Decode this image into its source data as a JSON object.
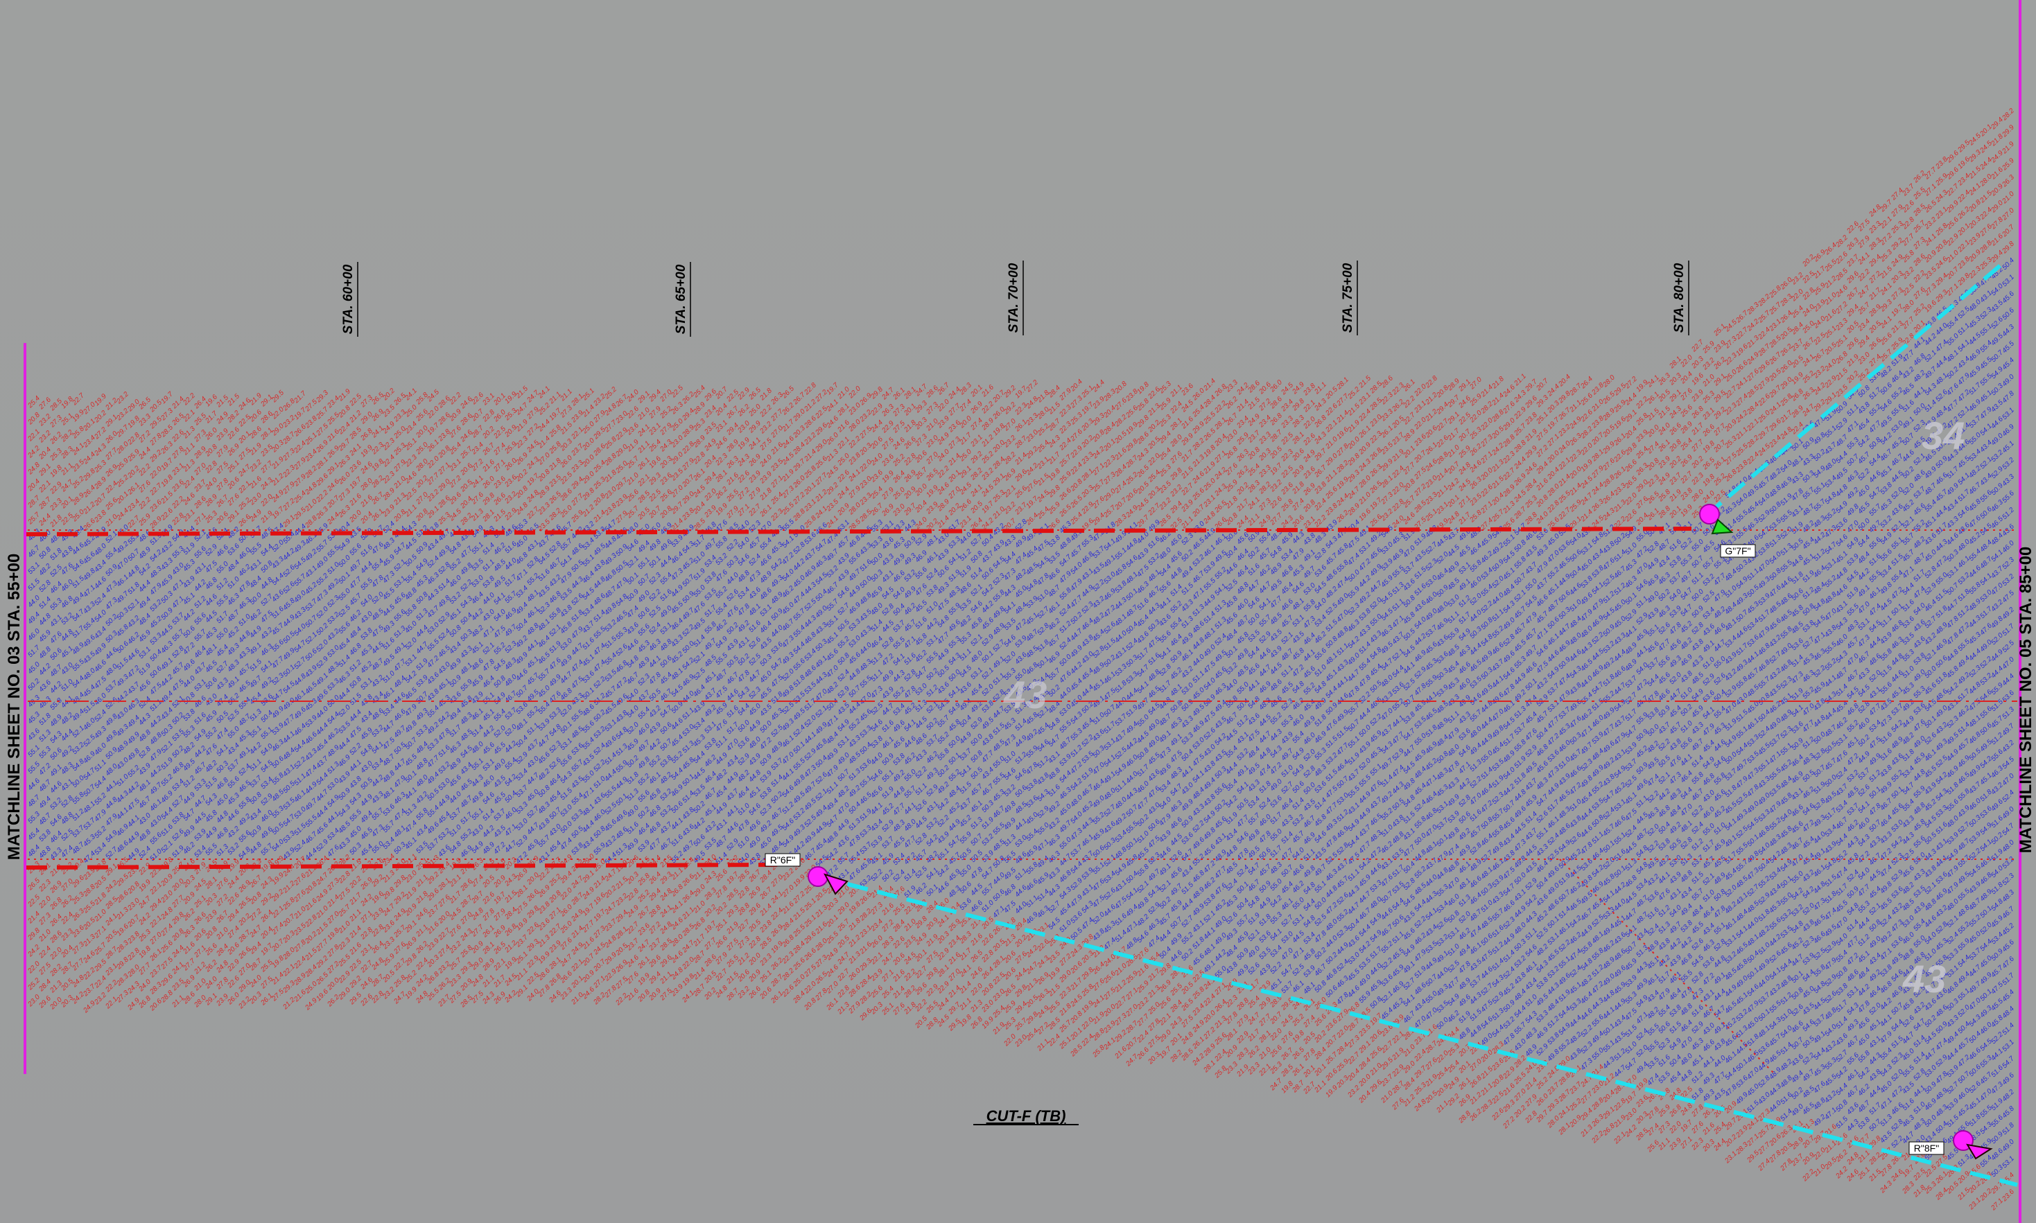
{
  "title": "",
  "colors": {
    "background": "#9e9fa0",
    "fill_values": "#d52a2a",
    "cut_values": "#2a2ad5",
    "dashed_boundary": "#e01010",
    "daylight_line": "#22e0ee",
    "matchline": "#e020e0",
    "control_point": "#ff22ff",
    "contour_label": "#c8c8d0"
  },
  "matchlines": {
    "left": "MATCHLINE SHEET NO. 03 STA. 55+00",
    "right": "MATCHLINE SHEET NO. 05 STA. 85+00"
  },
  "stations": [
    "STA. 60+00",
    "STA. 65+00",
    "STA. 70+00",
    "STA. 75+00",
    "STA. 80+00"
  ],
  "section_label": "CUT-F (TB)",
  "points": [
    {
      "label": "R\"6F\"",
      "icon": "target-circle-icon"
    },
    {
      "label": "G\"7F\"",
      "icon": "green-triangle-icon"
    },
    {
      "label": "R\"8F\"",
      "icon": "target-circle-icon"
    }
  ],
  "contour_labels": [
    "34",
    "43",
    "43"
  ],
  "elevation_field": {
    "fill_range": [
      19.6,
      29.9
    ],
    "cut_range": [
      43.0,
      55.9
    ]
  }
}
